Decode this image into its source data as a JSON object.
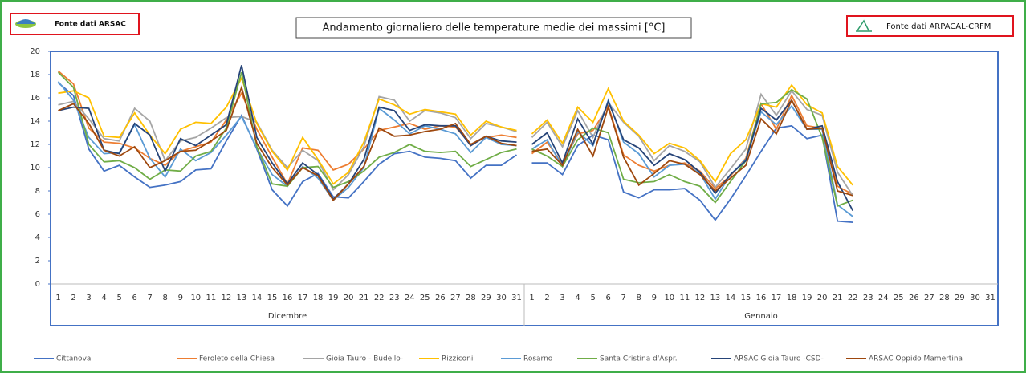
{
  "chart_data": {
    "type": "line",
    "title": "Andamento giornaliero delle temperature medie dei massimi [°C]",
    "source_left": "Fonte dati ARSAC",
    "source_right": "Fonte dati ARPACAL-CRFM",
    "groups": [
      {
        "name": "Dicembre",
        "categories": [
          "1",
          "2",
          "3",
          "4",
          "5",
          "6",
          "7",
          "8",
          "9",
          "10",
          "11",
          "12",
          "13",
          "14",
          "15",
          "16",
          "17",
          "18",
          "19",
          "20",
          "21",
          "22",
          "23",
          "24",
          "25",
          "26",
          "27",
          "28",
          "29",
          "30",
          "31"
        ]
      },
      {
        "name": "Gennaio",
        "categories": [
          "1",
          "2",
          "3",
          "4",
          "5",
          "6",
          "7",
          "8",
          "9",
          "10",
          "11",
          "12",
          "13",
          "14",
          "15",
          "16",
          "17",
          "18",
          "19",
          "20",
          "21",
          "22",
          "23",
          "24",
          "25",
          "26",
          "27",
          "28",
          "29",
          "30",
          "31"
        ]
      }
    ],
    "ylim": [
      0,
      20
    ],
    "yticks": [
      0,
      2,
      4,
      6,
      8,
      10,
      12,
      14,
      16,
      18,
      20
    ],
    "grid": false,
    "legend": "bottom",
    "series": [
      {
        "name": "Cittanova",
        "color": "#4472c4",
        "values": [
          17.3,
          16.2,
          11.6,
          9.7,
          10.2,
          9.2,
          8.3,
          8.5,
          8.8,
          9.8,
          9.9,
          12.3,
          14.5,
          11.6,
          8.1,
          6.7,
          8.8,
          9.5,
          7.5,
          7.4,
          8.8,
          10.3,
          11.2,
          11.4,
          10.9,
          10.8,
          10.6,
          9.1,
          10.2,
          10.2,
          11.1,
          10.4,
          10.4,
          9.4,
          11.9,
          12.8,
          12.4,
          7.9,
          7.4,
          8.1,
          8.1,
          8.2,
          7.2,
          5.5,
          7.3,
          9.3,
          11.4,
          13.4,
          13.6,
          12.5,
          12.8,
          5.4,
          5.3,
          null,
          null,
          null,
          null,
          null,
          null,
          null,
          null,
          null
        ]
      },
      {
        "name": "Feroleto della Chiesa",
        "color": "#ed7d31",
        "values": [
          18.3,
          17.2,
          13.4,
          12.2,
          12.1,
          11.7,
          10.8,
          10.2,
          11.4,
          11.8,
          12.2,
          14.1,
          16.4,
          13.3,
          10.9,
          8.6,
          11.7,
          11.5,
          9.8,
          10.3,
          11.6,
          13.2,
          13.5,
          13.8,
          13.3,
          13.6,
          13.5,
          12.0,
          12.6,
          12.8,
          12.6,
          11.2,
          12.2,
          10.3,
          12.9,
          13.2,
          15.3,
          11.1,
          10.2,
          9.7,
          10.2,
          10.4,
          9.7,
          8.2,
          9.3,
          10.8,
          15.5,
          13.3,
          16.2,
          13.6,
          13.4,
          8.4,
          7.7,
          null,
          null,
          null,
          null,
          null,
          null,
          null,
          null,
          null
        ]
      },
      {
        "name": "Gioia Tauro - Budello-",
        "color": "#a5a5a5",
        "values": [
          15.4,
          15.7,
          14.2,
          12.5,
          12.3,
          15.1,
          14.0,
          10.6,
          12.3,
          12.6,
          13.4,
          14.3,
          14.4,
          13.9,
          11.5,
          10.0,
          11.5,
          10.6,
          8.1,
          9.4,
          11.8,
          16.1,
          15.8,
          14.0,
          14.9,
          14.7,
          14.3,
          12.5,
          13.8,
          13.5,
          13.1,
          12.6,
          13.9,
          11.8,
          14.9,
          12.6,
          15.6,
          13.9,
          12.7,
          10.6,
          11.9,
          11.4,
          10.5,
          8.3,
          9.9,
          11.6,
          16.3,
          14.5,
          16.6,
          15.0,
          14.5,
          9.6,
          7.6,
          null,
          null,
          null,
          null,
          null,
          null,
          null,
          null,
          null
        ]
      },
      {
        "name": "Rizziconi",
        "color": "#ffc000",
        "values": [
          16.4,
          16.6,
          16.0,
          12.7,
          12.6,
          14.7,
          12.8,
          11.2,
          13.3,
          13.9,
          13.8,
          15.2,
          17.7,
          13.8,
          11.4,
          9.8,
          12.6,
          10.7,
          8.6,
          9.6,
          12.2,
          15.9,
          15.4,
          14.6,
          15.0,
          14.8,
          14.6,
          12.8,
          14.0,
          13.5,
          13.2,
          12.9,
          14.1,
          12.1,
          15.2,
          13.9,
          16.8,
          14.0,
          12.8,
          11.2,
          12.1,
          11.7,
          10.6,
          8.8,
          11.2,
          12.4,
          15.5,
          15.2,
          17.1,
          15.4,
          14.7,
          10.1,
          8.5,
          null,
          null,
          null,
          null,
          null,
          null,
          null,
          null,
          null
        ]
      },
      {
        "name": "Rosarno",
        "color": "#5b9bd5",
        "values": [
          17.4,
          15.8,
          12.6,
          11.2,
          11.3,
          13.7,
          10.8,
          9.2,
          11.6,
          10.6,
          11.3,
          12.8,
          14.4,
          11.7,
          9.4,
          8.4,
          10.1,
          9.1,
          7.2,
          8.3,
          10.0,
          15.1,
          14.1,
          12.9,
          13.6,
          13.3,
          12.9,
          11.3,
          12.6,
          12.0,
          11.9,
          11.6,
          12.4,
          10.1,
          13.1,
          11.9,
          15.8,
          12.2,
          11.2,
          9.2,
          10.2,
          10.3,
          9.5,
          7.3,
          9.4,
          10.7,
          14.8,
          13.7,
          15.3,
          13.3,
          13.3,
          6.8,
          5.8,
          null,
          null,
          null,
          null,
          null,
          null,
          null,
          null,
          null
        ]
      },
      {
        "name": "Santa Cristina d'Aspr.",
        "color": "#70ad47",
        "values": [
          18.2,
          16.9,
          12.0,
          10.5,
          10.6,
          10.0,
          9.0,
          9.8,
          9.7,
          11.0,
          11.4,
          13.4,
          18.2,
          11.8,
          8.6,
          8.4,
          10.0,
          10.1,
          8.3,
          8.8,
          9.7,
          10.9,
          11.3,
          12.0,
          11.4,
          11.3,
          11.4,
          10.1,
          10.7,
          11.3,
          11.6,
          11.6,
          11.0,
          10.1,
          12.4,
          13.4,
          13.0,
          9.0,
          8.7,
          8.8,
          9.4,
          8.8,
          8.4,
          7.0,
          8.8,
          10.6,
          15.5,
          15.6,
          16.7,
          15.9,
          12.6,
          6.7,
          7.2,
          null,
          null,
          null,
          null,
          null,
          null,
          null,
          null,
          null
        ]
      },
      {
        "name": "ARSAC Gioia Tauro -CSD-",
        "color": "#264478",
        "values": [
          14.9,
          15.2,
          15.1,
          11.5,
          11.2,
          13.8,
          12.8,
          9.7,
          12.5,
          11.9,
          12.8,
          13.7,
          18.8,
          12.6,
          10.4,
          8.6,
          10.4,
          9.4,
          7.3,
          8.6,
          10.7,
          15.2,
          14.9,
          13.2,
          13.7,
          13.6,
          13.6,
          11.9,
          12.7,
          12.3,
          12.2,
          12.0,
          13.0,
          10.4,
          14.2,
          12.0,
          15.7,
          12.4,
          11.7,
          10.2,
          11.2,
          10.7,
          9.6,
          7.8,
          9.4,
          10.6,
          15.1,
          14.1,
          15.8,
          13.3,
          13.6,
          8.8,
          6.3,
          null,
          null,
          null,
          null,
          null,
          null,
          null,
          null,
          null
        ]
      },
      {
        "name": "ARSAC Oppido Mamertina",
        "color": "#9e480e",
        "values": [
          14.9,
          15.5,
          13.8,
          11.5,
          11.0,
          11.8,
          10.0,
          10.6,
          11.4,
          11.5,
          12.3,
          13.2,
          16.9,
          12.1,
          10.0,
          8.5,
          10.0,
          9.3,
          7.2,
          8.6,
          10.1,
          13.4,
          12.7,
          12.8,
          13.1,
          13.3,
          13.8,
          12.0,
          12.7,
          12.1,
          11.9,
          11.4,
          11.6,
          10.2,
          13.3,
          11.0,
          15.2,
          10.9,
          8.5,
          9.5,
          10.6,
          10.3,
          9.4,
          8.0,
          9.1,
          10.2,
          14.2,
          12.9,
          15.8,
          13.3,
          13.4,
          8.0,
          7.6,
          null,
          null,
          null,
          null,
          null,
          null,
          null,
          null,
          null
        ]
      }
    ]
  }
}
